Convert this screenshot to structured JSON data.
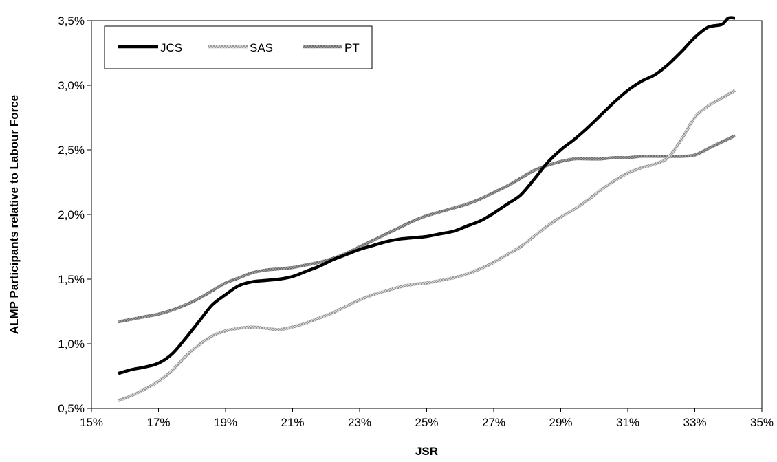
{
  "chart_data": {
    "type": "line",
    "title": "",
    "xlabel": "JSR",
    "ylabel": "ALMP Participants relative to Labour Force",
    "xlim": [
      15,
      35
    ],
    "ylim": [
      0.5,
      3.5
    ],
    "x_ticks": [
      "15%",
      "17%",
      "19%",
      "21%",
      "23%",
      "25%",
      "27%",
      "29%",
      "31%",
      "33%",
      "35%"
    ],
    "y_ticks": [
      "0,5%",
      "1,0%",
      "1,5%",
      "2,0%",
      "2,5%",
      "3,0%",
      "3,5%"
    ],
    "grid": false,
    "legend_position": "top-left",
    "series": [
      {
        "name": "JCS",
        "color": "#000000",
        "style": "solid",
        "points": [
          [
            15.8,
            0.77
          ],
          [
            16.2,
            0.8
          ],
          [
            16.6,
            0.82
          ],
          [
            17.0,
            0.85
          ],
          [
            17.4,
            0.92
          ],
          [
            17.8,
            1.04
          ],
          [
            18.2,
            1.17
          ],
          [
            18.6,
            1.3
          ],
          [
            19.0,
            1.38
          ],
          [
            19.4,
            1.45
          ],
          [
            19.8,
            1.48
          ],
          [
            20.2,
            1.49
          ],
          [
            20.6,
            1.5
          ],
          [
            21.0,
            1.52
          ],
          [
            21.4,
            1.56
          ],
          [
            21.8,
            1.6
          ],
          [
            22.2,
            1.65
          ],
          [
            22.6,
            1.69
          ],
          [
            23.0,
            1.73
          ],
          [
            23.4,
            1.76
          ],
          [
            23.8,
            1.79
          ],
          [
            24.2,
            1.81
          ],
          [
            24.6,
            1.82
          ],
          [
            25.0,
            1.83
          ],
          [
            25.4,
            1.85
          ],
          [
            25.8,
            1.87
          ],
          [
            26.2,
            1.91
          ],
          [
            26.6,
            1.95
          ],
          [
            27.0,
            2.01
          ],
          [
            27.4,
            2.08
          ],
          [
            27.8,
            2.15
          ],
          [
            28.2,
            2.27
          ],
          [
            28.6,
            2.4
          ],
          [
            29.0,
            2.5
          ],
          [
            29.4,
            2.58
          ],
          [
            29.8,
            2.67
          ],
          [
            30.2,
            2.77
          ],
          [
            30.6,
            2.87
          ],
          [
            31.0,
            2.96
          ],
          [
            31.4,
            3.03
          ],
          [
            31.8,
            3.08
          ],
          [
            32.2,
            3.16
          ],
          [
            32.6,
            3.26
          ],
          [
            33.0,
            3.37
          ],
          [
            33.4,
            3.45
          ],
          [
            33.8,
            3.47
          ],
          [
            34.0,
            3.52
          ],
          [
            34.2,
            3.52
          ]
        ]
      },
      {
        "name": "SAS",
        "color": "#c0c0c0",
        "style": "dotted",
        "points": [
          [
            15.8,
            0.56
          ],
          [
            16.2,
            0.6
          ],
          [
            16.6,
            0.65
          ],
          [
            17.0,
            0.71
          ],
          [
            17.4,
            0.79
          ],
          [
            17.8,
            0.9
          ],
          [
            18.2,
            0.99
          ],
          [
            18.6,
            1.06
          ],
          [
            19.0,
            1.1
          ],
          [
            19.4,
            1.12
          ],
          [
            19.8,
            1.13
          ],
          [
            20.2,
            1.12
          ],
          [
            20.6,
            1.11
          ],
          [
            21.0,
            1.13
          ],
          [
            21.4,
            1.16
          ],
          [
            21.8,
            1.2
          ],
          [
            22.2,
            1.24
          ],
          [
            22.6,
            1.29
          ],
          [
            23.0,
            1.34
          ],
          [
            23.4,
            1.38
          ],
          [
            23.8,
            1.41
          ],
          [
            24.2,
            1.44
          ],
          [
            24.6,
            1.46
          ],
          [
            25.0,
            1.47
          ],
          [
            25.4,
            1.49
          ],
          [
            25.8,
            1.51
          ],
          [
            26.2,
            1.54
          ],
          [
            26.6,
            1.58
          ],
          [
            27.0,
            1.63
          ],
          [
            27.4,
            1.69
          ],
          [
            27.8,
            1.75
          ],
          [
            28.2,
            1.83
          ],
          [
            28.6,
            1.91
          ],
          [
            29.0,
            1.98
          ],
          [
            29.4,
            2.04
          ],
          [
            29.8,
            2.11
          ],
          [
            30.2,
            2.19
          ],
          [
            30.6,
            2.26
          ],
          [
            31.0,
            2.32
          ],
          [
            31.4,
            2.36
          ],
          [
            31.8,
            2.39
          ],
          [
            32.2,
            2.44
          ],
          [
            32.6,
            2.58
          ],
          [
            33.0,
            2.75
          ],
          [
            33.4,
            2.84
          ],
          [
            33.8,
            2.9
          ],
          [
            34.2,
            2.96
          ]
        ]
      },
      {
        "name": "PT",
        "color": "#8c8c8c",
        "style": "textured",
        "points": [
          [
            15.8,
            1.17
          ],
          [
            16.2,
            1.19
          ],
          [
            16.6,
            1.21
          ],
          [
            17.0,
            1.23
          ],
          [
            17.4,
            1.26
          ],
          [
            17.8,
            1.3
          ],
          [
            18.2,
            1.35
          ],
          [
            18.6,
            1.41
          ],
          [
            19.0,
            1.47
          ],
          [
            19.4,
            1.51
          ],
          [
            19.8,
            1.55
          ],
          [
            20.2,
            1.57
          ],
          [
            20.6,
            1.58
          ],
          [
            21.0,
            1.59
          ],
          [
            21.4,
            1.61
          ],
          [
            21.8,
            1.63
          ],
          [
            22.2,
            1.66
          ],
          [
            22.6,
            1.7
          ],
          [
            23.0,
            1.75
          ],
          [
            23.4,
            1.8
          ],
          [
            23.8,
            1.85
          ],
          [
            24.2,
            1.9
          ],
          [
            24.6,
            1.95
          ],
          [
            25.0,
            1.99
          ],
          [
            25.4,
            2.02
          ],
          [
            25.8,
            2.05
          ],
          [
            26.2,
            2.08
          ],
          [
            26.6,
            2.12
          ],
          [
            27.0,
            2.17
          ],
          [
            27.4,
            2.22
          ],
          [
            27.8,
            2.28
          ],
          [
            28.2,
            2.34
          ],
          [
            28.6,
            2.38
          ],
          [
            29.0,
            2.41
          ],
          [
            29.4,
            2.43
          ],
          [
            29.8,
            2.43
          ],
          [
            30.2,
            2.43
          ],
          [
            30.6,
            2.44
          ],
          [
            31.0,
            2.44
          ],
          [
            31.4,
            2.45
          ],
          [
            31.8,
            2.45
          ],
          [
            32.2,
            2.45
          ],
          [
            32.6,
            2.45
          ],
          [
            33.0,
            2.46
          ],
          [
            33.4,
            2.51
          ],
          [
            33.8,
            2.56
          ],
          [
            34.2,
            2.61
          ]
        ]
      }
    ]
  }
}
